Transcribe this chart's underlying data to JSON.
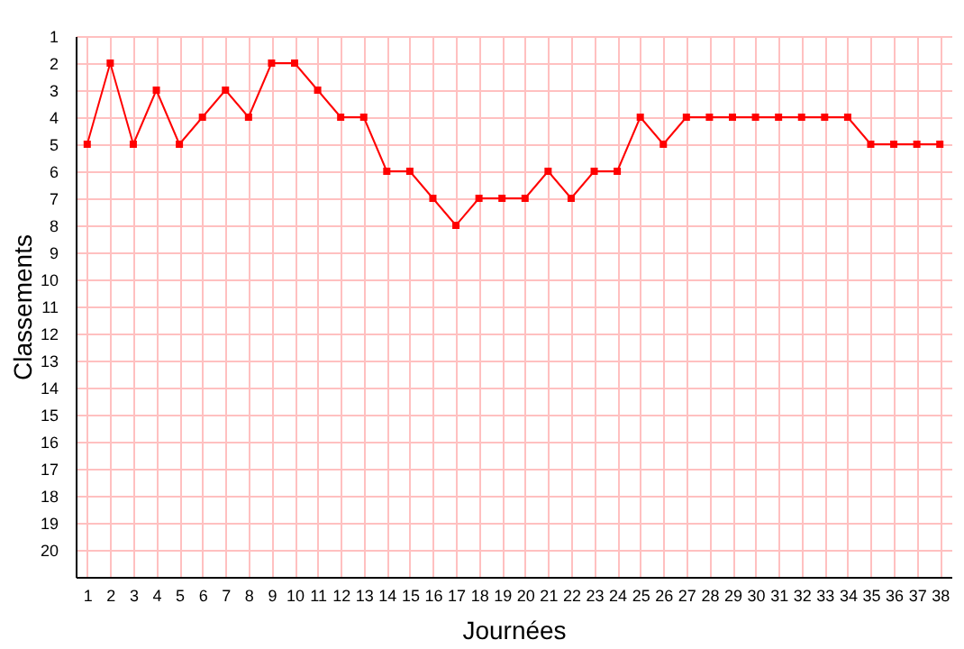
{
  "chart_data": {
    "type": "line",
    "xlabel": "Journées",
    "ylabel": "Classements",
    "x": [
      1,
      2,
      3,
      4,
      5,
      6,
      7,
      8,
      9,
      10,
      11,
      12,
      13,
      14,
      15,
      16,
      17,
      18,
      19,
      20,
      21,
      22,
      23,
      24,
      25,
      26,
      27,
      28,
      29,
      30,
      31,
      32,
      33,
      34,
      35,
      36,
      37,
      38
    ],
    "series": [
      {
        "color": "#ff0000",
        "values": [
          5,
          2,
          5,
          3,
          5,
          4,
          3,
          4,
          2,
          2,
          3,
          4,
          4,
          6,
          6,
          7,
          8,
          7,
          7,
          7,
          6,
          7,
          6,
          6,
          4,
          5,
          4,
          4,
          4,
          4,
          4,
          4,
          4,
          4,
          5,
          5,
          5,
          5
        ]
      }
    ],
    "xlim": [
      0.5,
      38.5
    ],
    "xticks": [
      1,
      2,
      3,
      4,
      5,
      6,
      7,
      8,
      9,
      10,
      11,
      12,
      13,
      14,
      15,
      16,
      17,
      18,
      19,
      20,
      21,
      22,
      23,
      24,
      25,
      26,
      27,
      28,
      29,
      30,
      31,
      32,
      33,
      34,
      35,
      36,
      37,
      38
    ],
    "ylim": [
      21,
      1
    ],
    "yticks": [
      1,
      2,
      3,
      4,
      5,
      6,
      7,
      8,
      9,
      10,
      11,
      12,
      13,
      14,
      15,
      16,
      17,
      18,
      19,
      20
    ],
    "grid": true,
    "marker": "square",
    "line_style": "solid",
    "legend": false
  }
}
